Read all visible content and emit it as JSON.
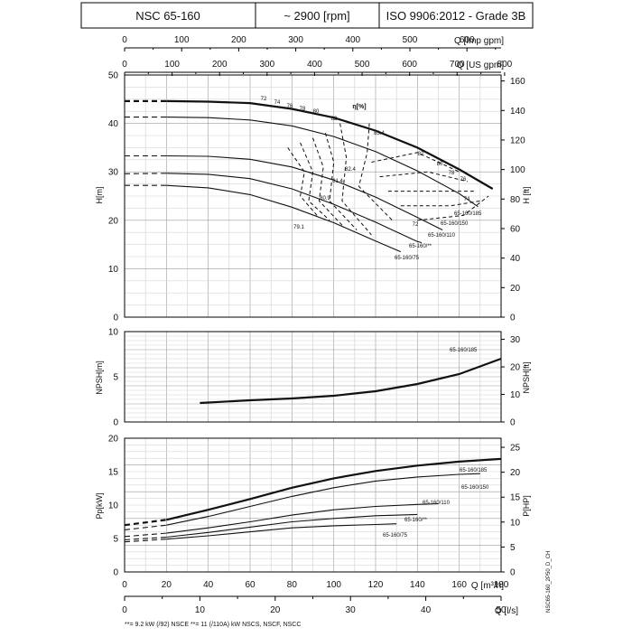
{
  "header": {
    "model": "NSC 65-160",
    "speed": "~ 2900 [rpm]",
    "standard": "ISO 9906:2012 - Grade 3B"
  },
  "axes": {
    "q_imp_label": "Q [Imp gpm]",
    "q_us_label": "Q [US gpm]",
    "q_m3h_label": "Q [m³/h]",
    "q_ls_label": "Q [l/s]",
    "h_m_label": "H[m]",
    "h_ft_label": "H [ft]",
    "npsh_m_label": "NPSH[m]",
    "npsh_ft_label": "NPSH[ft]",
    "p_kw_label": "Pp[kW]",
    "p_hp_label": "P[HP]",
    "q_imp_ticks": [
      "0",
      "100",
      "200",
      "300",
      "400",
      "500",
      "600"
    ],
    "q_us_ticks": [
      "0",
      "100",
      "200",
      "300",
      "400",
      "500",
      "600",
      "700",
      "800"
    ],
    "q_m3h_ticks": [
      "0",
      "20",
      "40",
      "60",
      "80",
      "100",
      "120",
      "140",
      "160",
      "180"
    ],
    "q_ls_ticks": [
      "0",
      "10",
      "20",
      "30",
      "40",
      "50"
    ],
    "h_m_ticks": [
      "0",
      "10",
      "20",
      "30",
      "40",
      "50"
    ],
    "h_ft_ticks": [
      "0",
      "20",
      "40",
      "60",
      "80",
      "100",
      "120",
      "140",
      "160"
    ],
    "npsh_m_ticks": [
      "0",
      "5",
      "10"
    ],
    "npsh_ft_ticks": [
      "0",
      "10",
      "20",
      "30"
    ],
    "p_kw_ticks": [
      "0",
      "5",
      "10",
      "15",
      "20"
    ],
    "p_hp_ticks": [
      "0",
      "5",
      "10",
      "15",
      "20",
      "25"
    ]
  },
  "footer": {
    "note": "**= 9.2 kW (/92) NSCE   **= 11 (/110A) kW NSCS, NSCF, NSCC",
    "code": "NSC65-160_2P50_D_CH"
  },
  "chart_data": [
    {
      "type": "line",
      "panel": "head",
      "xlabel": "Q [m³/h]",
      "ylabel": "H[m]",
      "xlim": [
        0,
        180
      ],
      "ylim": [
        0,
        50
      ],
      "grid": true,
      "series": [
        {
          "name": "65-160/185",
          "x": [
            0,
            20,
            40,
            60,
            80,
            100,
            120,
            140,
            160,
            176
          ],
          "y": [
            44.6,
            44.6,
            44.5,
            44.2,
            43.0,
            41.2,
            38.5,
            35.0,
            30.5,
            26.5
          ]
        },
        {
          "name": "65-160/150",
          "x": [
            0,
            20,
            40,
            60,
            80,
            100,
            120,
            140,
            160,
            169
          ],
          "y": [
            41.3,
            41.3,
            41.2,
            40.7,
            39.5,
            37.3,
            34.2,
            30.2,
            25.5,
            22.8
          ]
        },
        {
          "name": "65-160/110",
          "x": [
            0,
            20,
            40,
            60,
            80,
            100,
            120,
            140,
            152
          ],
          "y": [
            33.3,
            33.3,
            33.2,
            32.6,
            31.0,
            28.3,
            24.8,
            20.6,
            18.0
          ]
        },
        {
          "name": "65-160/**",
          "x": [
            0,
            20,
            40,
            60,
            80,
            100,
            120,
            140,
            142
          ],
          "y": [
            29.6,
            29.7,
            29.5,
            28.6,
            26.5,
            23.3,
            19.6,
            15.6,
            15.4
          ]
        },
        {
          "name": "65-160/75",
          "x": [
            0,
            20,
            40,
            60,
            80,
            100,
            120,
            132
          ],
          "y": [
            27.2,
            27.2,
            26.7,
            25.3,
            22.7,
            19.5,
            15.7,
            13.5
          ]
        }
      ],
      "efficiency_label": "η[%]",
      "efficiency_labels": [
        "72",
        "74",
        "76",
        "78",
        "80",
        "82",
        "83.4",
        "82",
        "80",
        "78",
        "76",
        "74",
        "72",
        "82.4",
        "81.4",
        "80.9",
        "79.1"
      ]
    },
    {
      "type": "line",
      "panel": "npsh",
      "xlabel": "Q [m³/h]",
      "ylabel": "NPSH[m]",
      "xlim": [
        0,
        180
      ],
      "ylim": [
        0,
        10
      ],
      "grid": true,
      "series": [
        {
          "name": "65-160/185",
          "x": [
            36,
            60,
            80,
            100,
            120,
            140,
            160,
            180
          ],
          "y": [
            2.1,
            2.4,
            2.6,
            2.9,
            3.4,
            4.2,
            5.3,
            7.0
          ]
        }
      ]
    },
    {
      "type": "line",
      "panel": "power",
      "xlabel": "Q [m³/h]",
      "ylabel": "Pp[kW]",
      "xlim": [
        0,
        180
      ],
      "ylim": [
        0,
        20
      ],
      "grid": true,
      "series": [
        {
          "name": "65-160/185",
          "x": [
            0,
            20,
            40,
            60,
            80,
            100,
            120,
            140,
            160,
            180
          ],
          "y": [
            7.0,
            7.8,
            9.3,
            10.9,
            12.6,
            14.0,
            15.1,
            15.9,
            16.5,
            16.9
          ]
        },
        {
          "name": "65-160/150",
          "x": [
            0,
            20,
            40,
            60,
            80,
            100,
            120,
            140,
            160,
            170
          ],
          "y": [
            6.3,
            7.0,
            8.3,
            9.8,
            11.3,
            12.6,
            13.6,
            14.2,
            14.6,
            14.7
          ]
        },
        {
          "name": "65-160/110",
          "x": [
            0,
            20,
            40,
            60,
            80,
            100,
            120,
            140,
            150
          ],
          "y": [
            5.3,
            5.8,
            6.6,
            7.5,
            8.5,
            9.3,
            9.8,
            10.1,
            10.2
          ]
        },
        {
          "name": "65-160/**",
          "x": [
            0,
            20,
            40,
            60,
            80,
            100,
            120,
            140
          ],
          "y": [
            4.8,
            5.2,
            5.9,
            6.7,
            7.5,
            8.0,
            8.4,
            8.6
          ]
        },
        {
          "name": "65-160/75",
          "x": [
            0,
            20,
            40,
            60,
            80,
            100,
            120,
            130
          ],
          "y": [
            4.5,
            4.9,
            5.4,
            6.0,
            6.6,
            6.9,
            7.1,
            7.2
          ]
        }
      ]
    }
  ]
}
